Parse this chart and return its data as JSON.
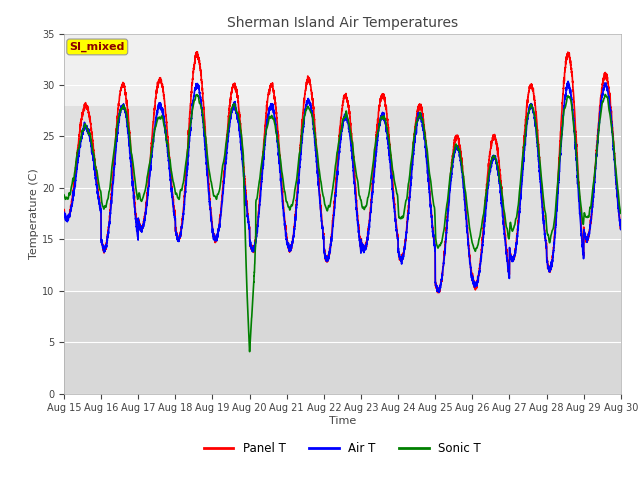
{
  "title": "Sherman Island Air Temperatures",
  "xlabel": "Time",
  "ylabel": "Temperature (C)",
  "ylim": [
    0,
    35
  ],
  "xlim": [
    0,
    360
  ],
  "annotation": "SI_mixed",
  "plot_bg": "#f0f0f0",
  "band1_ymin": 10,
  "band1_ymax": 28,
  "band1_color": "#e0e0e0",
  "band2_ymin": 0,
  "band2_ymax": 10,
  "band2_color": "#d8d8d8",
  "tick_labels": [
    "Aug 15",
    "Aug 16",
    "Aug 17",
    "Aug 18",
    "Aug 19",
    "Aug 20",
    "Aug 21",
    "Aug 22",
    "Aug 23",
    "Aug 24",
    "Aug 25",
    "Aug 26",
    "Aug 27",
    "Aug 28",
    "Aug 29",
    "Aug 30"
  ],
  "tick_positions": [
    0,
    24,
    48,
    72,
    96,
    120,
    144,
    168,
    192,
    216,
    240,
    264,
    288,
    312,
    336,
    360
  ],
  "yticks": [
    0,
    5,
    10,
    15,
    20,
    25,
    30,
    35
  ],
  "legend_labels": [
    "Panel T",
    "Air T",
    "Sonic T"
  ],
  "panel_color": "red",
  "air_color": "blue",
  "sonic_color": "green",
  "linewidth": 1.2,
  "title_fontsize": 10,
  "axis_label_fontsize": 8,
  "tick_fontsize": 7
}
